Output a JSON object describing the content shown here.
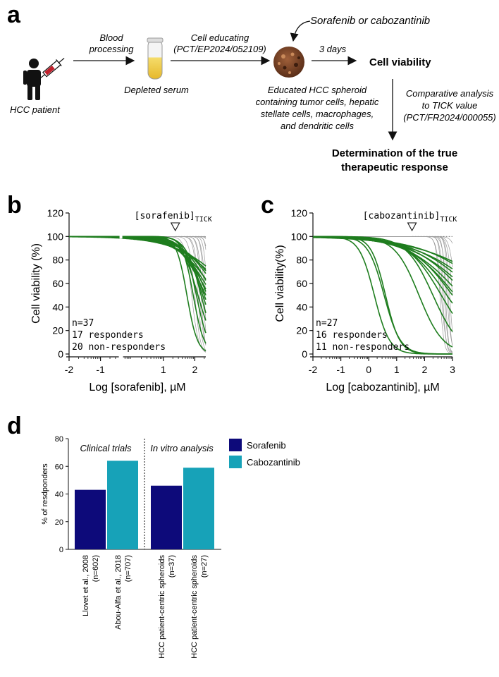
{
  "panel_a": {
    "letter": "a",
    "patient_label": "HCC patient",
    "step1_label_1": "Blood",
    "step1_label_2": "processing",
    "serum_label": "Depleted serum",
    "step2_label_1": "Cell educating",
    "step2_label_2": "(PCT/EP2024/052109)",
    "drug_label": "Sorafenib or cabozantinib",
    "spheroid_label_1": "Educated HCC spheroid",
    "spheroid_label_2": "containing tumor cells, hepatic",
    "spheroid_label_3": "stellate cells, macrophages,",
    "spheroid_label_4": "and dendritic cells",
    "step3_label": "3 days",
    "viability_label": "Cell viability",
    "analysis_label_1": "Comparative analysis",
    "analysis_label_2": "to TICK value",
    "analysis_label_3": "(PCT/FR2024/000055)",
    "result_label_1": "Determination of the true",
    "result_label_2": "therapeutic response"
  },
  "chart_data": [
    {
      "panel": "b",
      "type": "line",
      "ylabel": "Cell viability (%)",
      "xlabel": "Log [sorafenib], µM",
      "xlim": [
        -2,
        2.35
      ],
      "ylim": [
        0,
        120
      ],
      "x_ticks": [
        "-2",
        "-1",
        "1",
        "2"
      ],
      "x_tick_values": [
        -2,
        -1,
        1,
        2
      ],
      "y_ticks": [
        "0",
        "20",
        "40",
        "60",
        "80",
        "100",
        "120"
      ],
      "tick_label": "[sorafenib]",
      "tick_sub": "TICK",
      "tick_x": 1.38,
      "annotation_1": "n=37",
      "annotation_2": "17 responders",
      "annotation_3": "20 non-responders",
      "responder_color": "#1e7d1e",
      "nonresponder_color": "#9a9a9a",
      "responders": [
        {
          "ic50": 1.75,
          "hill": 2.6
        },
        {
          "ic50": 1.95,
          "hill": 2.5
        },
        {
          "ic50": 2.05,
          "hill": 2.2
        },
        {
          "ic50": 2.1,
          "hill": 1.6
        },
        {
          "ic50": 2.2,
          "hill": 1.8
        },
        {
          "ic50": 2.25,
          "hill": 1.4
        },
        {
          "ic50": 2.3,
          "hill": 1.3
        },
        {
          "ic50": 2.35,
          "hill": 1.0
        },
        {
          "ic50": 2.4,
          "hill": 1.1
        },
        {
          "ic50": 2.45,
          "hill": 0.9
        },
        {
          "ic50": 2.55,
          "hill": 0.8
        },
        {
          "ic50": 2.6,
          "hill": 0.9
        },
        {
          "ic50": 2.7,
          "hill": 0.7
        },
        {
          "ic50": 2.8,
          "hill": 0.75
        },
        {
          "ic50": 2.9,
          "hill": 0.7
        },
        {
          "ic50": 3.1,
          "hill": 0.55
        },
        {
          "ic50": 3.3,
          "hill": 0.5
        }
      ],
      "nonresponders": [
        {
          "ic50": 1.9,
          "hill": 4.0
        },
        {
          "ic50": 2.0,
          "hill": 5.0
        },
        {
          "ic50": 2.1,
          "hill": 6.0
        },
        {
          "ic50": 2.15,
          "hill": 5.5
        },
        {
          "ic50": 2.2,
          "hill": 7.0
        },
        {
          "ic50": 2.25,
          "hill": 6.0
        },
        {
          "ic50": 2.3,
          "hill": 8.0
        },
        {
          "ic50": 2.35,
          "hill": 6.5
        },
        {
          "ic50": 2.4,
          "hill": 7.5
        },
        {
          "ic50": 2.45,
          "hill": 9.0
        },
        {
          "ic50": 2.5,
          "hill": 7.0
        },
        {
          "ic50": 2.55,
          "hill": 8.5
        },
        {
          "ic50": 2.6,
          "hill": 9.0
        },
        {
          "ic50": 2.7,
          "hill": 6.0
        },
        {
          "ic50": 2.8,
          "hill": 5.0
        },
        {
          "ic50": 2.9,
          "hill": 4.5
        },
        {
          "ic50": 3.0,
          "hill": 5.0
        },
        {
          "ic50": 3.2,
          "hill": 4.0
        },
        {
          "ic50": 3.4,
          "hill": 3.5
        },
        {
          "ic50": 3.6,
          "hill": 3.0
        }
      ]
    },
    {
      "panel": "c",
      "type": "line",
      "ylabel": "Cell viability(%)",
      "xlabel": "Log [cabozantinib], µM",
      "xlim": [
        -2,
        3
      ],
      "ylim": [
        0,
        120
      ],
      "x_ticks": [
        "-2",
        "-1",
        "0",
        "1",
        "2",
        "3"
      ],
      "x_tick_values": [
        -2,
        -1,
        0,
        1,
        2,
        3
      ],
      "y_ticks": [
        "0",
        "20",
        "40",
        "60",
        "80",
        "100",
        "120"
      ],
      "tick_label": "[cabozantinib]",
      "tick_sub": "TICK",
      "tick_x": 1.55,
      "annotation_1": "n=27",
      "annotation_2": "16 responders",
      "annotation_3": "11 non-responders",
      "responder_color": "#1e7d1e",
      "nonresponder_color": "#9a9a9a",
      "responders": [
        {
          "ic50": 0.2,
          "hill": 1.6
        },
        {
          "ic50": 0.55,
          "hill": 1.5
        },
        {
          "ic50": 0.6,
          "hill": 1.7
        },
        {
          "ic50": 1.8,
          "hill": 1.0
        },
        {
          "ic50": 2.3,
          "hill": 0.9
        },
        {
          "ic50": 2.6,
          "hill": 0.7
        },
        {
          "ic50": 2.8,
          "hill": 0.6
        },
        {
          "ic50": 3.0,
          "hill": 0.55
        },
        {
          "ic50": 3.1,
          "hill": 0.5
        },
        {
          "ic50": 3.3,
          "hill": 0.45
        },
        {
          "ic50": 3.5,
          "hill": 0.45
        },
        {
          "ic50": 3.7,
          "hill": 0.4
        },
        {
          "ic50": 3.9,
          "hill": 0.4
        },
        {
          "ic50": 4.2,
          "hill": 0.35
        },
        {
          "ic50": 4.5,
          "hill": 0.35
        },
        {
          "ic50": 4.9,
          "hill": 0.3
        }
      ],
      "nonresponders": [
        {
          "ic50": 2.55,
          "hill": 6.0
        },
        {
          "ic50": 2.6,
          "hill": 5.0
        },
        {
          "ic50": 2.65,
          "hill": 7.0
        },
        {
          "ic50": 2.7,
          "hill": 6.0
        },
        {
          "ic50": 2.75,
          "hill": 8.0
        },
        {
          "ic50": 2.8,
          "hill": 5.5
        },
        {
          "ic50": 2.85,
          "hill": 7.5
        },
        {
          "ic50": 2.9,
          "hill": 6.5
        },
        {
          "ic50": 3.0,
          "hill": 5.0
        },
        {
          "ic50": 3.1,
          "hill": 4.5
        },
        {
          "ic50": 3.3,
          "hill": 4.0
        }
      ]
    },
    {
      "panel": "d",
      "type": "bar",
      "ylabel": "% of resdponders",
      "ylim": [
        0,
        80
      ],
      "y_ticks": [
        "0",
        "20",
        "40",
        "60",
        "80"
      ],
      "group_1": "Clinical trials",
      "group_2": "In vitro analysis",
      "categories": [
        {
          "line1": "Llovet et al., 2008",
          "line2": "(n=602)"
        },
        {
          "line1": "Abou-Alfa et al., 2018",
          "line2": "(n=707)"
        },
        {
          "line1": "HCC patient-centric spheroids",
          "line2": "(n=37)"
        },
        {
          "line1": "HCC patient-centric spheroids",
          "line2": "(n=27)"
        }
      ],
      "values": [
        43,
        64,
        46,
        59
      ],
      "series_of_bar": [
        0,
        1,
        0,
        1
      ],
      "series": [
        {
          "name": "Sorafenib",
          "color": "#0d0a7a"
        },
        {
          "name": "Cabozantinib",
          "color": "#17a2b8"
        }
      ]
    }
  ]
}
